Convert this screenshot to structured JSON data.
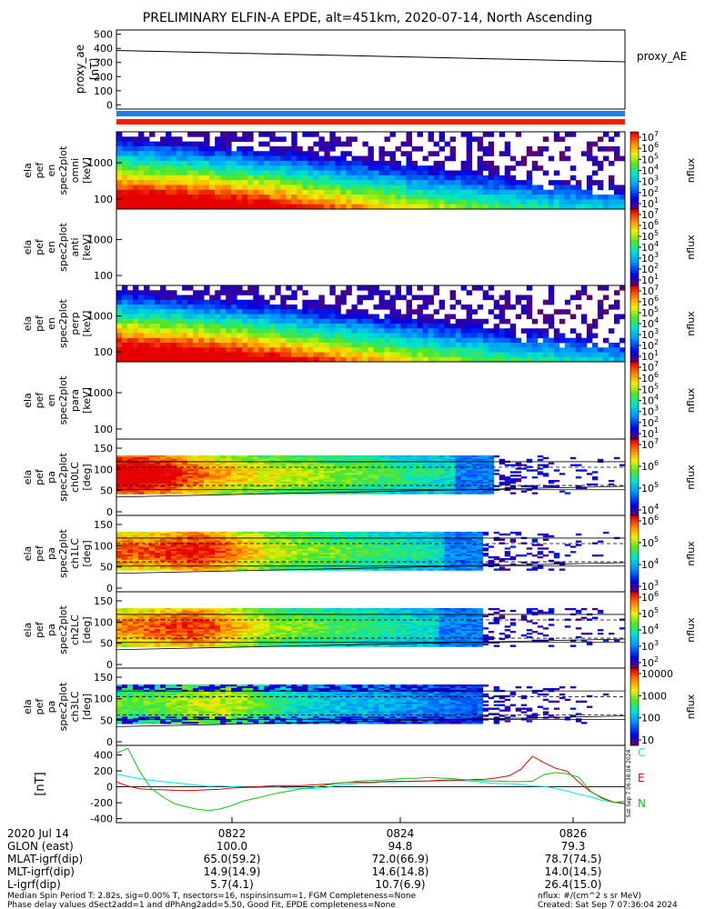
{
  "title": "PRELIMINARY ELFIN-A EPDE, alt=451km, 2020-07-14, North Ascending",
  "colors": {
    "blue_bar": "#1a7fe6",
    "red_bar": "#ff1c00",
    "mag_C": "#00e5ff",
    "mag_E": "#e00000",
    "mag_N": "#12c012"
  },
  "chart_data": [
    {
      "type": "line",
      "panel": "proxy_ae",
      "ylabel": [
        "proxy_ae",
        "[nT]"
      ],
      "right_label": "proxy_AE",
      "yticks": [
        "500",
        "400",
        "300",
        "200",
        "100",
        "0"
      ],
      "ylim": [
        -30,
        530
      ],
      "x": [
        0,
        1
      ],
      "series": [
        {
          "name": "proxy_AE",
          "values": [
            385,
            305
          ]
        }
      ]
    },
    {
      "type": "heatmap",
      "panel": "ela_pef_en_spec2plot_omni",
      "ylabel": [
        "ela",
        "pef",
        "en",
        "spec2plot",
        "omni",
        "[keV]"
      ],
      "yticks": [
        "1000",
        "100"
      ],
      "colorbar": {
        "label": "nflux",
        "ticks": [
          "10",
          "10",
          "10",
          "10",
          "10",
          "10",
          "10"
        ],
        "exponents": [
          "7",
          "6",
          "5",
          "4",
          "3",
          "2",
          "1"
        ]
      }
    },
    {
      "type": "heatmap",
      "panel": "ela_pef_en_spec2plot_anti",
      "ylabel": [
        "ela",
        "pef",
        "en",
        "spec2plot",
        "anti",
        "[keV]"
      ],
      "yticks": [
        "1000",
        "100"
      ],
      "colorbar": {
        "label": "nflux",
        "ticks": [
          "10",
          "10",
          "10",
          "10",
          "10",
          "10",
          "10"
        ],
        "exponents": [
          "7",
          "6",
          "5",
          "4",
          "3",
          "2",
          "1"
        ]
      }
    },
    {
      "type": "heatmap",
      "panel": "ela_pef_en_spec2plot_perp",
      "ylabel": [
        "ela",
        "pef",
        "en",
        "spec2plot",
        "perp",
        "[keV]"
      ],
      "yticks": [
        "1000",
        "100"
      ],
      "colorbar": {
        "label": "nflux",
        "ticks": [
          "10",
          "10",
          "10",
          "10",
          "10",
          "10",
          "10"
        ],
        "exponents": [
          "7",
          "6",
          "5",
          "4",
          "3",
          "2",
          "1"
        ]
      }
    },
    {
      "type": "heatmap",
      "panel": "ela_pef_en_spec2plot_para",
      "ylabel": [
        "ela",
        "pef",
        "en",
        "spec2plot",
        "para",
        "[keV]"
      ],
      "yticks": [
        "1000",
        "100"
      ],
      "colorbar": {
        "label": "nflux",
        "ticks": [
          "10",
          "10",
          "10",
          "10",
          "10",
          "10",
          "10"
        ],
        "exponents": [
          "7",
          "6",
          "5",
          "4",
          "3",
          "2",
          "1"
        ]
      }
    },
    {
      "type": "heatmap",
      "panel": "ela_pef_pa_spec2plot_ch0LC",
      "ylabel": [
        "ela",
        "pef",
        "pa",
        "spec2plot",
        "ch0LC",
        "[deg]"
      ],
      "yticks": [
        "150",
        "100",
        "50",
        "0"
      ],
      "colorbar": {
        "label": "nflux",
        "ticks": [
          "10",
          "10",
          "10",
          "10"
        ],
        "exponents": [
          "7",
          "6",
          "5",
          "4"
        ]
      }
    },
    {
      "type": "heatmap",
      "panel": "ela_pef_pa_spec2plot_ch1LC",
      "ylabel": [
        "ela",
        "pef",
        "pa",
        "spec2plot",
        "ch1LC",
        "[deg]"
      ],
      "yticks": [
        "150",
        "100",
        "50",
        "0"
      ],
      "colorbar": {
        "label": "nflux",
        "ticks": [
          "10",
          "10",
          "10",
          "10"
        ],
        "exponents": [
          "6",
          "5",
          "4",
          "3"
        ]
      }
    },
    {
      "type": "heatmap",
      "panel": "ela_pef_pa_spec2plot_ch2LC",
      "ylabel": [
        "ela",
        "pef",
        "pa",
        "spec2plot",
        "ch2LC",
        "[deg]"
      ],
      "yticks": [
        "150",
        "100",
        "50",
        "0"
      ],
      "colorbar": {
        "label": "nflux",
        "ticks": [
          "10",
          "10",
          "10",
          "10",
          "10"
        ],
        "exponents": [
          "6",
          "5",
          "4",
          "3",
          "2"
        ]
      }
    },
    {
      "type": "heatmap",
      "panel": "ela_pef_pa_spec2plot_ch3LC",
      "ylabel": [
        "ela",
        "pef",
        "pa",
        "spec2plot",
        "ch3LC",
        "[deg]"
      ],
      "yticks": [
        "150",
        "100",
        "50",
        "0"
      ],
      "colorbar": {
        "label": "nflux",
        "ticks": [
          "10000",
          "1000",
          "100",
          "10"
        ]
      }
    },
    {
      "type": "line",
      "panel": "mag",
      "ylabel": [
        "[nT]"
      ],
      "yticks": [
        "400",
        "200",
        "0",
        "-200",
        "-400"
      ],
      "ylim": [
        -450,
        520
      ],
      "series": [
        {
          "name": "C",
          "values": [
            160,
            130,
            105,
            85,
            65,
            45,
            30,
            15,
            10,
            5,
            0,
            -5,
            -5,
            -10,
            -10,
            -15,
            -20,
            -20,
            -10,
            10,
            30,
            40,
            50,
            55,
            60,
            65,
            65,
            70,
            70,
            75,
            70,
            65,
            55,
            45,
            35,
            25,
            15,
            5,
            -20,
            -50,
            -90,
            -130,
            -170,
            -190,
            -200
          ]
        },
        {
          "name": "E",
          "values": [
            60,
            10,
            -20,
            -30,
            -40,
            -45,
            -50,
            -50,
            -40,
            -30,
            -20,
            -10,
            0,
            5,
            10,
            15,
            20,
            25,
            30,
            40,
            50,
            55,
            60,
            60,
            65,
            70,
            75,
            80,
            80,
            85,
            85,
            90,
            95,
            110,
            140,
            220,
            380,
            300,
            230,
            200,
            60,
            -60,
            -140,
            -190,
            -210
          ]
        },
        {
          "name": "N",
          "values": [
            420,
            480,
            200,
            -20,
            -130,
            -210,
            -250,
            -280,
            -300,
            -280,
            -230,
            -180,
            -140,
            -110,
            -80,
            -50,
            -30,
            -10,
            20,
            40,
            60,
            70,
            80,
            90,
            100,
            110,
            110,
            120,
            110,
            100,
            90,
            90,
            80,
            70,
            60,
            60,
            70,
            150,
            180,
            160,
            120,
            -50,
            -150,
            -200,
            -180
          ]
        }
      ],
      "side_note": "Sat Sep  7 06:38:04 2024"
    }
  ],
  "footer": {
    "time_labels": [
      "0822",
      "0824",
      "0826"
    ],
    "rows": [
      {
        "label": "2020 Jul 14",
        "values": [
          "0822",
          "0824",
          "0826"
        ]
      },
      {
        "label": "GLON (east)",
        "values": [
          "100.0",
          "94.8",
          "79.3"
        ]
      },
      {
        "label": "MLAT-igrf(dip)",
        "values": [
          "65.0(59.2)",
          "72.0(66.9)",
          "78.7(74.5)"
        ]
      },
      {
        "label": "MLT-igrf(dip)",
        "values": [
          "14.9(14.9)",
          "14.6(14.8)",
          "14.0(14.5)"
        ]
      },
      {
        "label": "L-igrf(dip)",
        "values": [
          "5.7(4.1)",
          "10.7(6.9)",
          "26.4(15.0)"
        ]
      }
    ],
    "line1": "Median Spin Period T: 2.82s, sig=0.00% T, nsectors=16, nspinsinsum=1, FGM Completeness=None",
    "line2": "Phase delay values dSect2add=1 and dPhAng2add=5.50, Good Fit, EPDE completeness=None",
    "units": "nflux: #/(cm^2 s sr MeV)",
    "created": "Created: Sat Sep  7 07:36:04 2024"
  }
}
